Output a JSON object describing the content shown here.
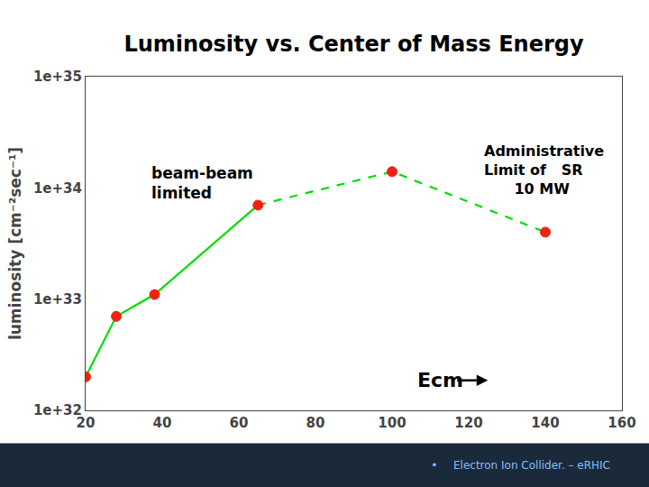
{
  "chart_data": {
    "type": "line",
    "title": "Luminosity vs. Center of Mass Energy",
    "ylabel": "luminosity [cm⁻²sec⁻¹]",
    "log": "y",
    "grid": false,
    "xlim": [
      20,
      160
    ],
    "xticks": [
      20,
      40,
      60,
      80,
      100,
      120,
      140,
      160
    ],
    "ylim": [
      1e+32,
      1e+35
    ],
    "yticks": [
      {
        "value": 1e+32,
        "label": "1e+32"
      },
      {
        "value": 1e+33,
        "label": "1e+33"
      },
      {
        "value": 1e+34,
        "label": "1e+34"
      },
      {
        "value": 1e+35,
        "label": "1e+35"
      }
    ],
    "series": [
      {
        "x": [
          20,
          28,
          38,
          65
        ],
        "values": [
          2e+32,
          7e+32,
          1.1e+33,
          7e+33
        ],
        "color": "#00dd00",
        "line_style": "solid"
      },
      {
        "x": [
          65,
          100,
          140
        ],
        "values": [
          7e+33,
          1.4e+34,
          4e+33
        ],
        "color": "#00dd00",
        "line_style": "dashed"
      },
      {
        "type": "scatter",
        "x": [
          20,
          28,
          38,
          65,
          100,
          140
        ],
        "values": [
          2e+32,
          7e+32,
          1.1e+33,
          7e+33,
          1.4e+34,
          4e+33
        ],
        "color": "#ee2211",
        "marker": "circle"
      }
    ],
    "annotations": [
      {
        "text": "beam-beam\nlimited"
      },
      {
        "text": "Administrative\nLimit of   SR\n      10 MW"
      },
      {
        "text": "Ecm"
      },
      {
        "text": "•",
        "color": "#88bbff"
      },
      {
        "text": "Electron Ion Collider. – eRHIC",
        "color": "#88bbff"
      }
    ]
  }
}
